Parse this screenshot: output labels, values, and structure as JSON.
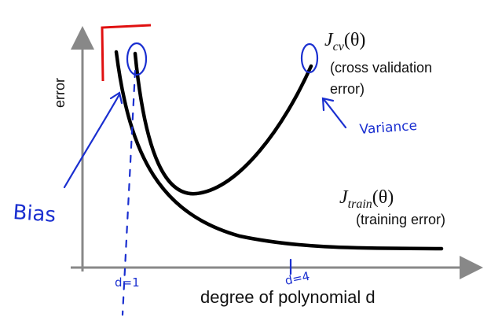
{
  "axes": {
    "y_label": "error",
    "x_label": "degree of polynomial d"
  },
  "curves": {
    "cv": {
      "symbol": "J",
      "subscript": "cv",
      "argument": "(θ)",
      "description_line1": "(cross validation",
      "description_line2": "error)"
    },
    "train": {
      "symbol": "J",
      "subscript": "train",
      "argument": "(θ)",
      "description": "(training error)"
    }
  },
  "annotations": {
    "variance": "Variance",
    "bias": "Bias",
    "d1": "d=1",
    "d4": "d=4"
  }
}
